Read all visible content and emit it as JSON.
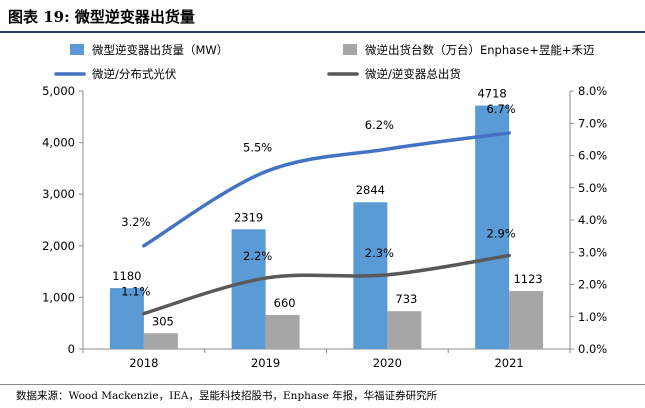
{
  "figure_title": "图表 19:  微型逆变器出货量",
  "source_note": "数据来源：Wood Mackenzie，IEA，昱能科技招股书，Enphase 年报，华福证券研究所",
  "colors": {
    "micro_inverter_bar": "#5b9bd5",
    "units_bar": "#a6a6a6",
    "micro_share_line": "#4472c4",
    "total_share_line": "#595959"
  },
  "chart_data": {
    "type": "bar",
    "categories": [
      "2018",
      "2019",
      "2020",
      "2021"
    ],
    "series": [
      {
        "name": "微型逆变器出货量（MW）",
        "type": "bar",
        "axis": "left",
        "values": [
          1180,
          2319,
          2844,
          4718
        ],
        "labels": [
          "1180",
          "2319",
          "2844",
          "4718"
        ]
      },
      {
        "name": "微逆出货台数（万台）Enphase+昱能+禾迈",
        "type": "bar",
        "axis": "left",
        "values": [
          305,
          660,
          733,
          1123
        ],
        "labels": [
          "305",
          "660",
          "733",
          "1123"
        ]
      },
      {
        "name": "微逆/分布式光伏",
        "type": "line",
        "axis": "right",
        "values": [
          3.2,
          5.5,
          6.2,
          6.7
        ],
        "labels": [
          "3.2%",
          "5.5%",
          "6.2%",
          "6.7%"
        ]
      },
      {
        "name": "微逆/逆变器总出货",
        "type": "line",
        "axis": "right",
        "values": [
          1.1,
          2.2,
          2.3,
          2.9
        ],
        "labels": [
          "1.1%",
          "2.2%",
          "2.3%",
          "2.9%"
        ]
      }
    ],
    "ylim": [
      0,
      5000
    ],
    "y_ticks": [
      "0",
      "1,000",
      "2,000",
      "3,000",
      "4,000",
      "5,000"
    ],
    "y2lim": [
      0,
      8
    ],
    "y2_ticks": [
      "0.0%",
      "1.0%",
      "2.0%",
      "3.0%",
      "4.0%",
      "5.0%",
      "6.0%",
      "7.0%",
      "8.0%"
    ],
    "legend_position": "top",
    "grid": false
  }
}
